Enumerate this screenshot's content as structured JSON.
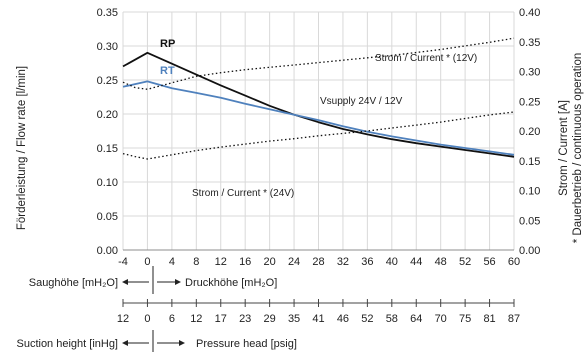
{
  "chart_data": {
    "type": "line",
    "x": [
      -4,
      0,
      4,
      8,
      12,
      16,
      20,
      24,
      28,
      32,
      36,
      40,
      44,
      48,
      52,
      56,
      60
    ],
    "x_ticks": [
      "-4",
      "0",
      "4",
      "8",
      "12",
      "16",
      "20",
      "24",
      "28",
      "32",
      "36",
      "40",
      "44",
      "48",
      "52",
      "56",
      "60"
    ],
    "xlim": [
      -4,
      60
    ],
    "ylim": [
      0,
      0.35
    ],
    "y_ticks": [
      "0.00",
      "0.05",
      "0.10",
      "0.15",
      "0.20",
      "0.25",
      "0.30",
      "0.35"
    ],
    "ylabel": "Förderleistung / Flow rate [l/min]",
    "y2lim": [
      0,
      0.4
    ],
    "y2_ticks": [
      "0.00",
      "0.05",
      "0.10",
      "0.15",
      "0.20",
      "0.25",
      "0.30",
      "0.35",
      "0.40"
    ],
    "y2label": "Strom / Current [A]",
    "y2label_sub": "* Dauerbetrieb / continuous operation",
    "grid": true,
    "series": [
      {
        "name": "RP",
        "axis": "left",
        "color": "#111111",
        "style": "solid",
        "x": [
          -4,
          0,
          4,
          8,
          12,
          16,
          20,
          24,
          28,
          32,
          36,
          40,
          44,
          48,
          52,
          56,
          60
        ],
        "values": [
          0.27,
          0.29,
          0.274,
          0.258,
          0.242,
          0.227,
          0.212,
          0.199,
          0.188,
          0.178,
          0.17,
          0.163,
          0.157,
          0.152,
          0.147,
          0.142,
          0.137
        ]
      },
      {
        "name": "RT",
        "axis": "left",
        "color": "#4f81bd",
        "style": "solid",
        "x": [
          -4,
          0,
          4,
          8,
          12,
          16,
          20,
          24,
          28,
          32,
          36,
          40,
          44,
          48,
          52,
          56,
          60
        ],
        "values": [
          0.24,
          0.248,
          0.238,
          0.231,
          0.224,
          0.215,
          0.207,
          0.199,
          0.191,
          0.182,
          0.174,
          0.167,
          0.161,
          0.155,
          0.15,
          0.145,
          0.14
        ]
      },
      {
        "name": "Strom / Current * (12V)",
        "axis": "right",
        "color": "#111111",
        "style": "dotted",
        "x": [
          -4,
          -2,
          0,
          4,
          8,
          12,
          16,
          20,
          24,
          28,
          32,
          36,
          40,
          44,
          48,
          52,
          56,
          60
        ],
        "values": [
          0.282,
          0.273,
          0.27,
          0.281,
          0.292,
          0.298,
          0.303,
          0.307,
          0.311,
          0.315,
          0.319,
          0.323,
          0.327,
          0.332,
          0.337,
          0.343,
          0.349,
          0.356
        ]
      },
      {
        "name": "Strom / Current * (24V)",
        "axis": "right",
        "color": "#111111",
        "style": "dotted",
        "x": [
          -4,
          -2,
          0,
          4,
          8,
          12,
          16,
          20,
          24,
          28,
          32,
          36,
          40,
          44,
          48,
          52,
          56,
          60
        ],
        "values": [
          0.162,
          0.157,
          0.153,
          0.16,
          0.167,
          0.173,
          0.178,
          0.183,
          0.187,
          0.192,
          0.196,
          0.2,
          0.205,
          0.21,
          0.215,
          0.221,
          0.227,
          0.232
        ]
      }
    ],
    "annotations": {
      "rp": "RP",
      "rt": "RT",
      "vsupply": "Vsupply 24V / 12V",
      "current12": "Strom / Current * (12V)",
      "current24": "Strom / Current * (24V)"
    },
    "scale1": {
      "left_label": "Saughöhe [mH₂O]",
      "right_label": "Druckhöhe [mH₂O]"
    },
    "scale2": {
      "ticks": [
        "12",
        "0",
        "6",
        "12",
        "17",
        "23",
        "29",
        "35",
        "41",
        "46",
        "52",
        "58",
        "64",
        "70",
        "75",
        "81",
        "87"
      ],
      "left_label": "Suction height [inHg]",
      "right_label": "Pressure head [psig]"
    }
  }
}
